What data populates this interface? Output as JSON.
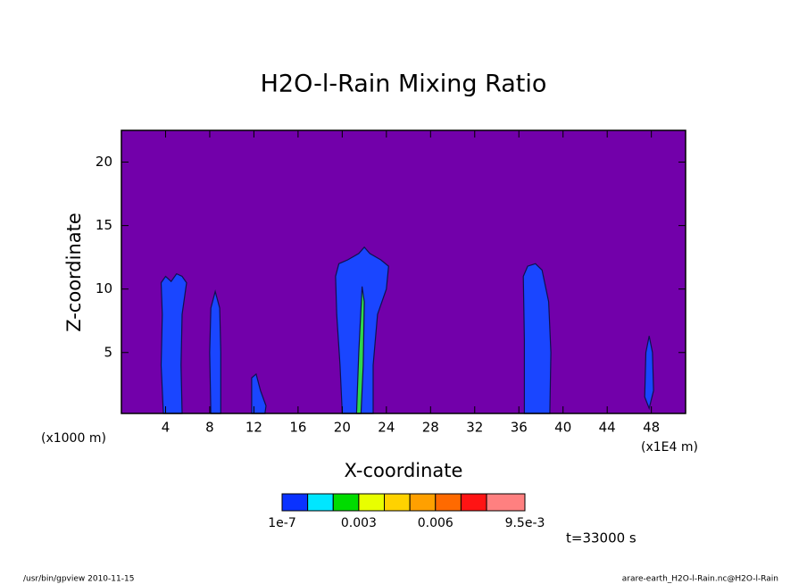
{
  "chart_data": {
    "type": "contour",
    "title": "H2O-l-Rain Mixing Ratio",
    "xlabel": "X-coordinate",
    "ylabel": "Z-coordinate",
    "x_unit_left": "(x1000 m)",
    "x_unit_right": "(x1E4 m)",
    "time_label": "t=33000 s",
    "footer_left": "/usr/bin/gpview  2010-11-15",
    "footer_right": "arare-earth_H2O-l-Rain.nc@H2O-l-Rain",
    "background_color": "#7200aa",
    "xlim": [
      0,
      51.1
    ],
    "ylim": [
      0.2,
      22.5
    ],
    "xticks": [
      4,
      8,
      12,
      16,
      20,
      24,
      28,
      32,
      36,
      40,
      44,
      48
    ],
    "yticks": [
      5,
      10,
      15,
      20
    ],
    "regions": [
      {
        "color": "#1a46ff",
        "x": [
          3.8,
          3.6,
          3.7,
          3.6,
          4,
          4.5,
          5,
          5.5,
          5.9,
          5.5,
          5.4,
          5.5
        ],
        "z": [
          0.2,
          4,
          8,
          10.5,
          11,
          10.6,
          11.2,
          11,
          10.5,
          8,
          4,
          0.2
        ]
      },
      {
        "color": "#1a46ff",
        "x": [
          8.1,
          8.0,
          8.1,
          8.5,
          8.9,
          9.0,
          9.0
        ],
        "z": [
          0.2,
          5,
          8.5,
          9.8,
          8.5,
          5,
          0.2
        ]
      },
      {
        "color": "#1a46ff",
        "x": [
          11.8,
          11.8,
          12.2,
          12.6,
          13.1,
          13
        ],
        "z": [
          0.2,
          3,
          3.3,
          2,
          0.8,
          0.2
        ]
      },
      {
        "color": "#1a46ff",
        "x": [
          20,
          19.8,
          19.5,
          19.4,
          19.7,
          20.5,
          21.5,
          22,
          22.5,
          23.5,
          24.2,
          24,
          23.2,
          22.8,
          22.8
        ],
        "z": [
          0.2,
          4,
          8,
          11,
          12,
          12.3,
          12.8,
          13.3,
          12.8,
          12.3,
          11.8,
          10,
          8,
          4,
          0.2
        ]
      },
      {
        "color": "#2fd84a",
        "x": [
          21.3,
          21.5,
          21.8,
          22,
          21.9,
          21.7
        ],
        "z": [
          0.2,
          5,
          10.2,
          9,
          4,
          0.2
        ]
      },
      {
        "color": "#1a46ff",
        "x": [
          36.5,
          36.5,
          36.4,
          36.8,
          37.5,
          38.1,
          38.7,
          38.9,
          38.8
        ],
        "z": [
          0.2,
          6,
          11,
          11.8,
          12,
          11.5,
          9,
          5,
          0.2
        ]
      },
      {
        "color": "#1a46ff",
        "x": [
          47.4,
          47.5,
          47.8,
          48.1,
          48.2,
          47.8
        ],
        "z": [
          1.5,
          5,
          6.3,
          5,
          2,
          0.6
        ]
      }
    ],
    "colorbar": {
      "colors": [
        "#0a32ff",
        "#00e6ff",
        "#00dc00",
        "#e8ff00",
        "#ffd200",
        "#ffa000",
        "#ff6a00",
        "#ff1414",
        "#ff8080"
      ],
      "levels": [
        1e-07,
        0.001,
        0.002,
        0.003,
        0.004,
        0.005,
        0.006,
        0.007,
        0.008,
        0.0095
      ],
      "lim": [
        1e-07,
        0.0095
      ],
      "ticks": [
        {
          "value": 1e-07,
          "label": "1e-7"
        },
        {
          "value": 0.003,
          "label": "0.003"
        },
        {
          "value": 0.006,
          "label": "0.006"
        },
        {
          "value": 0.0095,
          "label": "9.5e-3"
        }
      ]
    }
  }
}
